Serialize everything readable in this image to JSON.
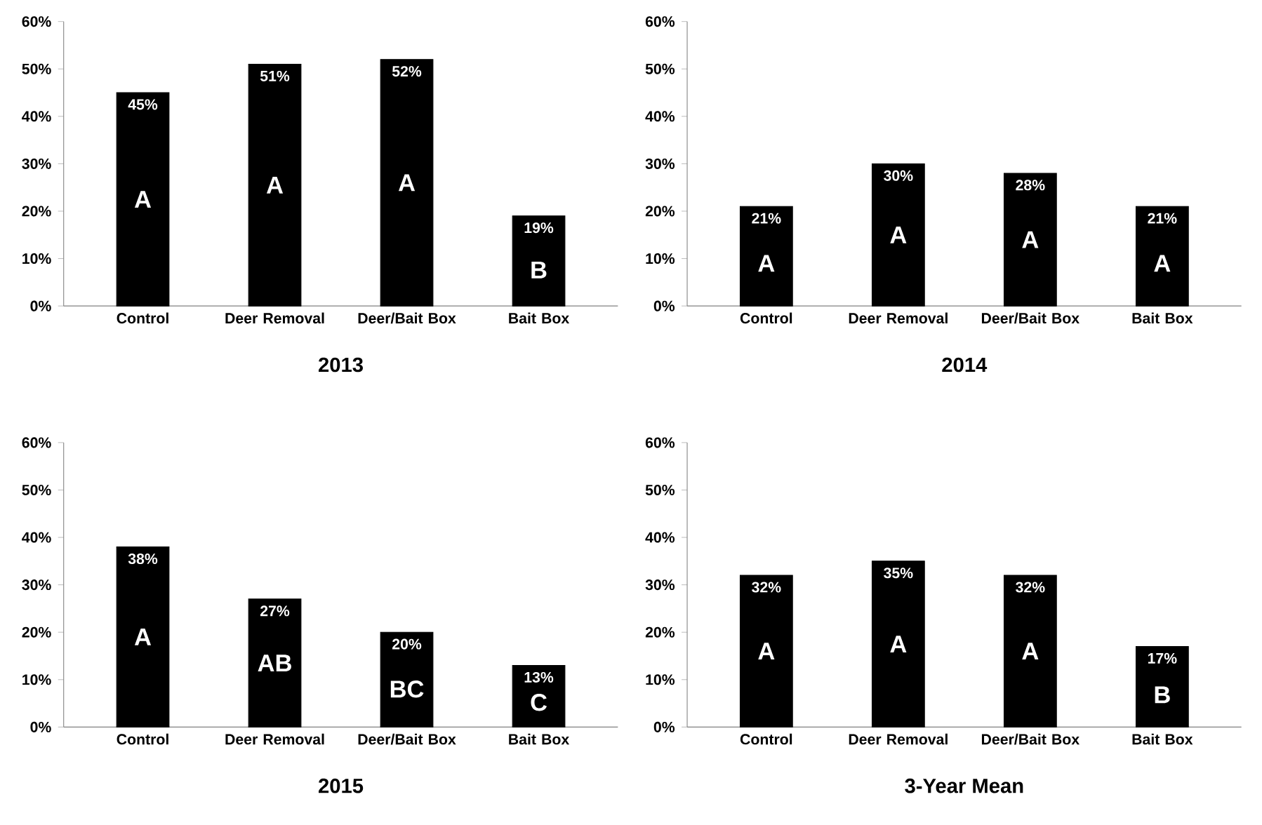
{
  "chart_data": [
    {
      "type": "bar",
      "title": "2013",
      "categories": [
        "Control",
        "Deer Removal",
        "Deer/Bait Box",
        "Bait Box"
      ],
      "values": [
        45,
        51,
        52,
        19
      ],
      "color": "#000000",
      "value_labels": [
        "45%",
        "51%",
        "52%",
        "19%"
      ],
      "ylim": [
        0,
        60
      ],
      "yticks": [
        {
          "value": 0,
          "label": "0%"
        },
        {
          "value": 10,
          "label": "10%"
        },
        {
          "value": 20,
          "label": "20%"
        },
        {
          "value": 30,
          "label": "30%"
        },
        {
          "value": 40,
          "label": "40%"
        },
        {
          "value": 50,
          "label": "50%"
        },
        {
          "value": 60,
          "label": "60%"
        }
      ],
      "annotations": [
        "A",
        "A",
        "A",
        "B"
      ]
    },
    {
      "type": "bar",
      "title": "2014",
      "categories": [
        "Control",
        "Deer Removal",
        "Deer/Bait Box",
        "Bait Box"
      ],
      "values": [
        21,
        30,
        28,
        21
      ],
      "color": "#000000",
      "value_labels": [
        "21%",
        "30%",
        "28%",
        "21%"
      ],
      "ylim": [
        0,
        60
      ],
      "yticks": [
        {
          "value": 0,
          "label": "0%"
        },
        {
          "value": 10,
          "label": "10%"
        },
        {
          "value": 20,
          "label": "20%"
        },
        {
          "value": 30,
          "label": "30%"
        },
        {
          "value": 40,
          "label": "40%"
        },
        {
          "value": 50,
          "label": "50%"
        },
        {
          "value": 60,
          "label": "60%"
        }
      ],
      "annotations": [
        "A",
        "A",
        "A",
        "A"
      ]
    },
    {
      "type": "bar",
      "title": "2015",
      "categories": [
        "Control",
        "Deer Removal",
        "Deer/Bait Box",
        "Bait Box"
      ],
      "values": [
        38,
        27,
        20,
        13
      ],
      "color": "#000000",
      "value_labels": [
        "38%",
        "27%",
        "20%",
        "13%"
      ],
      "ylim": [
        0,
        60
      ],
      "yticks": [
        {
          "value": 0,
          "label": "0%"
        },
        {
          "value": 10,
          "label": "10%"
        },
        {
          "value": 20,
          "label": "20%"
        },
        {
          "value": 30,
          "label": "30%"
        },
        {
          "value": 40,
          "label": "40%"
        },
        {
          "value": 50,
          "label": "50%"
        },
        {
          "value": 60,
          "label": "60%"
        }
      ],
      "annotations": [
        "A",
        "AB",
        "BC",
        "C"
      ]
    },
    {
      "type": "bar",
      "title": "3-Year Mean",
      "categories": [
        "Control",
        "Deer Removal",
        "Deer/Bait Box",
        "Bait Box"
      ],
      "values": [
        32,
        35,
        32,
        17
      ],
      "color": "#000000",
      "value_labels": [
        "32%",
        "35%",
        "32%",
        "17%"
      ],
      "ylim": [
        0,
        60
      ],
      "yticks": [
        {
          "value": 0,
          "label": "0%"
        },
        {
          "value": 10,
          "label": "10%"
        },
        {
          "value": 20,
          "label": "20%"
        },
        {
          "value": 30,
          "label": "30%"
        },
        {
          "value": 40,
          "label": "40%"
        },
        {
          "value": 50,
          "label": "50%"
        },
        {
          "value": 60,
          "label": "60%"
        }
      ],
      "annotations": [
        "A",
        "A",
        "A",
        "B"
      ]
    }
  ]
}
